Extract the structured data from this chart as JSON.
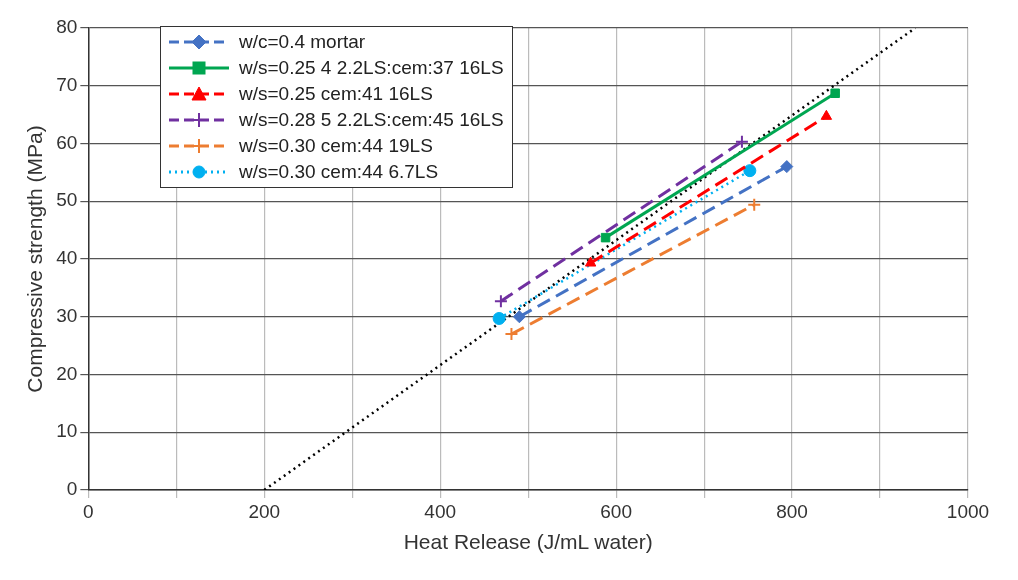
{
  "chart_data": {
    "type": "line",
    "xlabel": "Heat Release (J/mL water)",
    "ylabel": "Compressive strength (MPa)",
    "xlim": [
      0,
      1000
    ],
    "ylim": [
      0,
      80
    ],
    "xticks": [
      0,
      {
        "value": 100,
        "label": null
      },
      200,
      {
        "value": 300,
        "label": null
      },
      400,
      {
        "value": 500,
        "label": null
      },
      600,
      {
        "value": 700,
        "label": null
      },
      800,
      {
        "value": 900,
        "label": null
      },
      1000
    ],
    "yticks": [
      0,
      10,
      20,
      30,
      40,
      50,
      60,
      70,
      80
    ],
    "grid": true,
    "legend": "top left",
    "series": [
      {
        "name": "w/c=0.4 mortar",
        "color": "#4472c4",
        "x": [
          490,
          794
        ],
        "values": [
          30,
          56
        ],
        "marker": "diamond",
        "line_style": "dashed"
      },
      {
        "name": "w/s=0.25 4 2.2LS:cem:37 16LS",
        "color": "#00a651",
        "x": [
          588,
          849
        ],
        "values": [
          43.7,
          68.7
        ],
        "marker": "square",
        "line_style": "solid"
      },
      {
        "name": "w/s=0.25 cem:41 16LS",
        "color": "#ff0000",
        "x": [
          571,
          839
        ],
        "values": [
          39.3,
          64.7
        ],
        "marker": "triangle",
        "line_style": "dashed"
      },
      {
        "name": "w/s=0.28 5 2.2LS:cem:45 16LS",
        "color": "#7030a0",
        "x": [
          469,
          743
        ],
        "values": [
          32.7,
          60.3
        ],
        "marker": "cross",
        "line_style": "dashed"
      },
      {
        "name": "w/s=0.30 cem:44 19LS",
        "color": "#ed7d31",
        "x": [
          481,
          757
        ],
        "values": [
          27,
          49.4
        ],
        "marker": "cross",
        "line_style": "dashed"
      },
      {
        "name": "w/s=0.30 cem:44 6.7LS",
        "color": "#00b0f0",
        "x": [
          467,
          752
        ],
        "values": [
          29.7,
          55.3
        ],
        "marker": "circle",
        "line_style": "dotted"
      },
      {
        "color": "#000000",
        "x": [
          200,
          940
        ],
        "values": [
          0,
          80
        ],
        "marker": "none",
        "line_style": "dotted"
      }
    ]
  }
}
